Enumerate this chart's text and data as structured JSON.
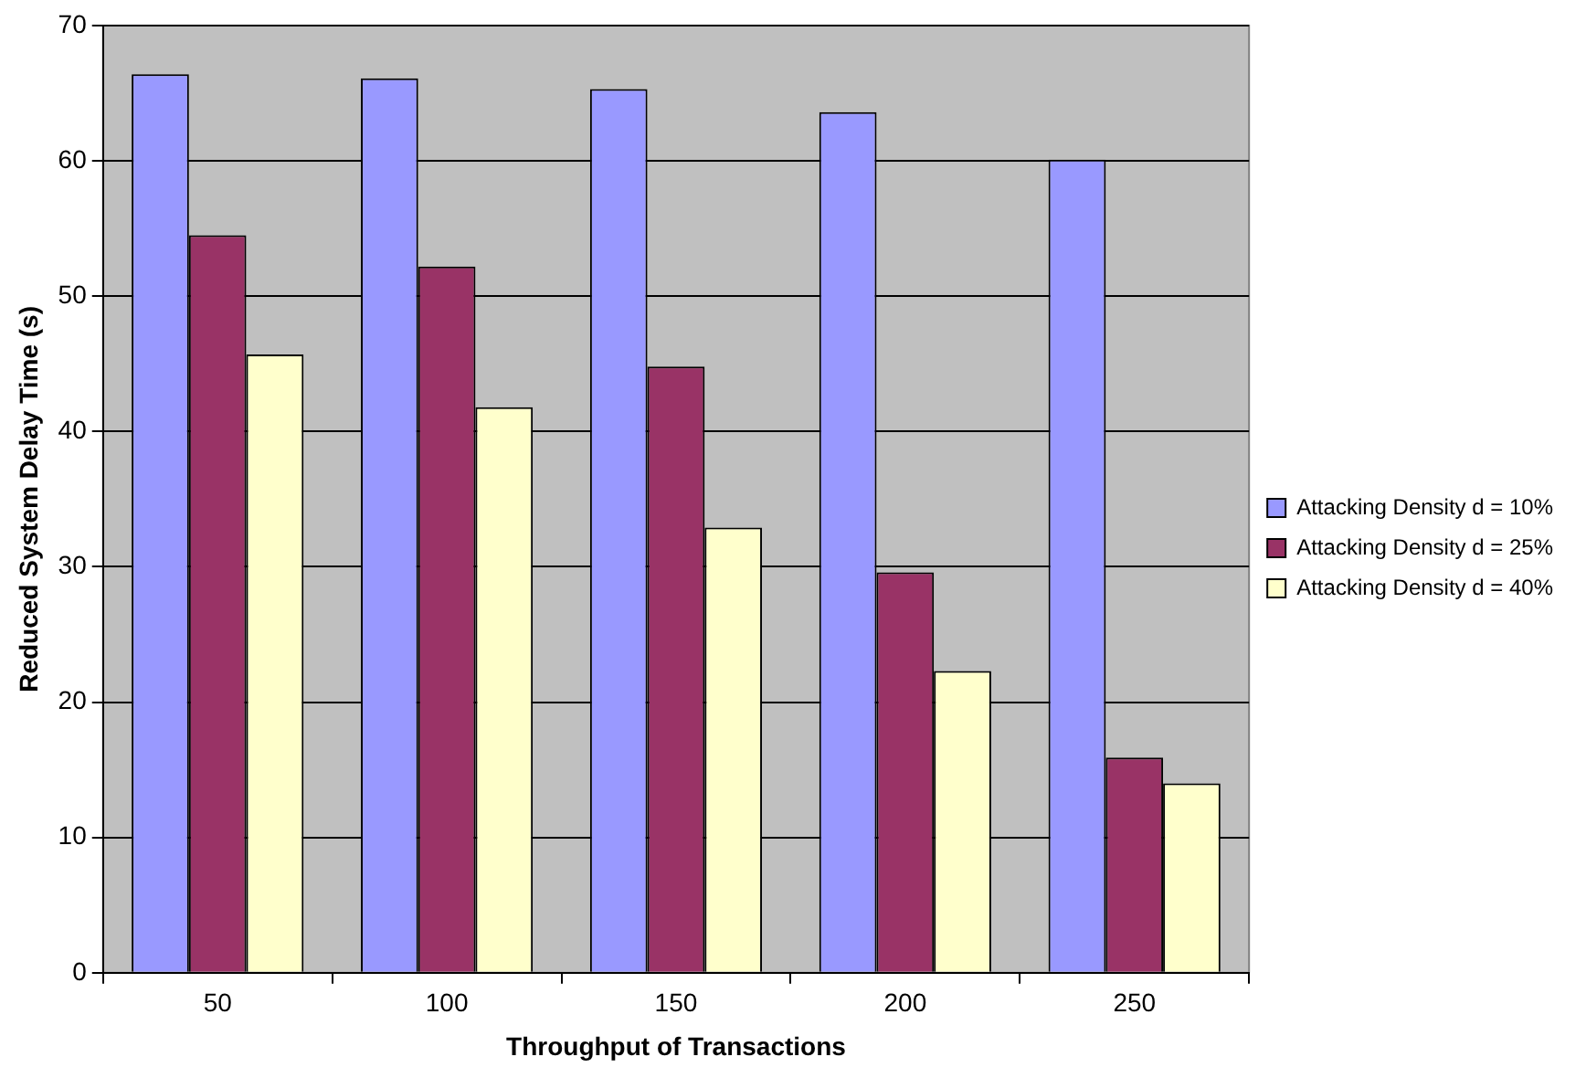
{
  "chart_data": {
    "type": "bar",
    "xlabel": "Throughput of Transactions",
    "ylabel": "Reduced System Delay Time (s)",
    "categories": [
      "50",
      "100",
      "150",
      "200",
      "250"
    ],
    "series": [
      {
        "name": "Attacking Density d = 10%",
        "color": "#9999ff",
        "values": [
          66.4,
          66.1,
          65.3,
          63.6,
          60.1
        ]
      },
      {
        "name": "Attacking Density d = 25%",
        "color": "#993366",
        "values": [
          54.5,
          52.2,
          44.8,
          29.6,
          15.9
        ]
      },
      {
        "name": "Attacking Density d = 40%",
        "color": "#ffffcc",
        "values": [
          45.7,
          41.8,
          32.9,
          22.3,
          14.0
        ]
      }
    ],
    "ylim": [
      0,
      70
    ],
    "yticks": [
      0,
      10,
      20,
      30,
      40,
      50,
      60,
      70
    ],
    "grid": "y",
    "legend": "right"
  }
}
